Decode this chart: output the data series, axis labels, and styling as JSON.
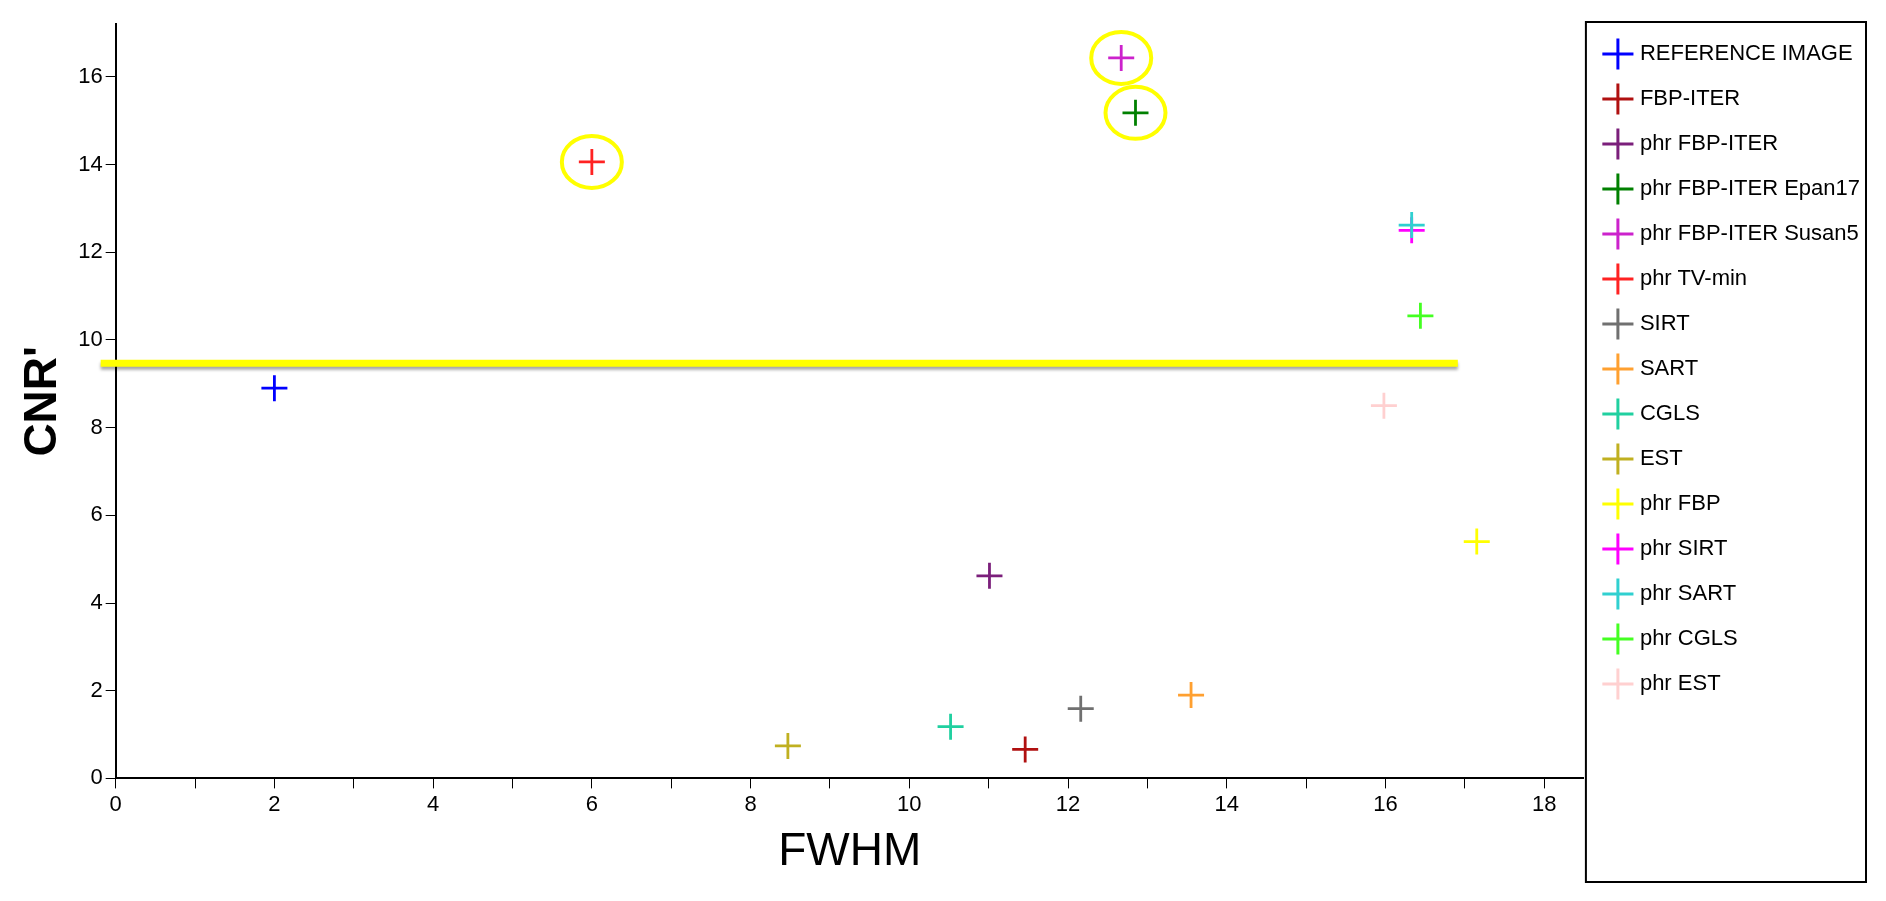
{
  "chart_data": {
    "type": "scatter",
    "xlabel": "FWHM",
    "ylabel": "CNR'",
    "xlim": [
      0,
      18.5
    ],
    "ylim": [
      0,
      17.2
    ],
    "xticks": [
      0,
      {
        "value": 1,
        "label": null
      },
      2,
      {
        "value": 3,
        "label": null
      },
      4,
      {
        "value": 5,
        "label": null
      },
      6,
      {
        "value": 7,
        "label": null
      },
      8,
      {
        "value": 9,
        "label": null
      },
      10,
      {
        "value": 11,
        "label": null
      },
      12,
      {
        "value": 13,
        "label": null
      },
      14,
      {
        "value": 15,
        "label": null
      },
      16,
      {
        "value": 17,
        "label": null
      },
      18
    ],
    "yticks": [
      0,
      2,
      4,
      6,
      8,
      10,
      12,
      14,
      16
    ],
    "grid": false,
    "legend": "right",
    "marker": "cross",
    "ref_lines": [
      {
        "axis": "y",
        "value": 9.47,
        "color": "#ffff00"
      }
    ],
    "series": [
      {
        "name": "REFERENCE IMAGE",
        "color": "#0000ff",
        "x": [
          2.0
        ],
        "values": [
          8.9
        ]
      },
      {
        "name": "FBP-ITER",
        "color": "#b01010",
        "x": [
          11.46
        ],
        "values": [
          0.66
        ]
      },
      {
        "name": "phr FBP-ITER",
        "color": "#7b1f7b",
        "x": [
          11.01
        ],
        "values": [
          4.62
        ]
      },
      {
        "name": "phr FBP-ITER Epan17",
        "color": "#008000",
        "x": [
          12.85
        ],
        "values": [
          15.18
        ]
      },
      {
        "name": "phr FBP-ITER Susan5",
        "color": "#cc22cc",
        "x": [
          12.67
        ],
        "values": [
          16.43
        ]
      },
      {
        "name": "phr TV-min",
        "color": "#ff2222",
        "x": [
          6.0
        ],
        "values": [
          14.06
        ]
      },
      {
        "name": "SIRT",
        "color": "#707070",
        "x": [
          12.16
        ],
        "values": [
          1.59
        ]
      },
      {
        "name": "SART",
        "color": "#ffa030",
        "x": [
          13.55
        ],
        "values": [
          1.9
        ]
      },
      {
        "name": "CGLS",
        "color": "#20d0a0",
        "x": [
          10.52
        ],
        "values": [
          1.18
        ]
      },
      {
        "name": "EST",
        "color": "#c0b020",
        "x": [
          8.47
        ],
        "values": [
          0.74
        ]
      },
      {
        "name": "phr FBP",
        "color": "#ffff00",
        "x": [
          17.15
        ],
        "values": [
          5.4
        ]
      },
      {
        "name": "phr SIRT",
        "color": "#ff00ff",
        "x": [
          16.33
        ],
        "values": [
          12.5
        ]
      },
      {
        "name": "phr SART",
        "color": "#30d0d0",
        "x": [
          16.33
        ],
        "values": [
          12.62
        ]
      },
      {
        "name": "phr CGLS",
        "color": "#44ff22",
        "x": [
          16.44
        ],
        "values": [
          10.55
        ]
      },
      {
        "name": "phr EST",
        "color": "#ffd0d0",
        "x": [
          15.98
        ],
        "values": [
          8.5
        ]
      }
    ]
  }
}
